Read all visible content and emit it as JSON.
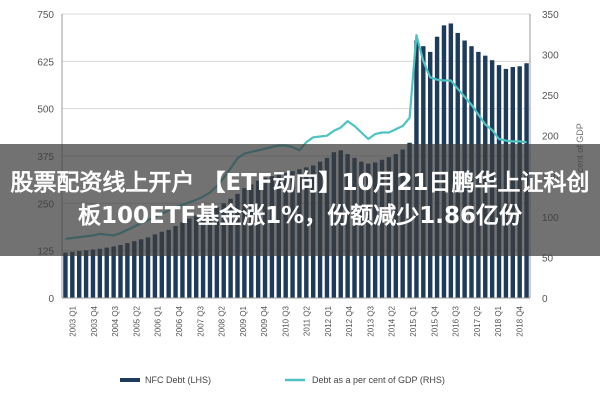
{
  "headline": "股票配资线上开户 【ETF动向】10月21日鹏华上证科创板100ETF基金涨1%，份额减少1.86亿份",
  "colors": {
    "bar": "#1f3b5c",
    "line": "#4ec3c2",
    "grid": "#d8d8d8",
    "axis": "#999999"
  },
  "chart_data": {
    "type": "bar",
    "title": "",
    "xlabel": "",
    "ylabel_left": "",
    "ylabel_right": "Per cent of GDP",
    "ylim_left": [
      0,
      750
    ],
    "ylim_right": [
      0,
      350
    ],
    "yticks_left": [
      "0",
      "125",
      "250",
      "375",
      "500",
      "625",
      "750"
    ],
    "yticks_right": [
      "0",
      "50",
      "100",
      "150",
      "200",
      "250",
      "300",
      "350"
    ],
    "x_tick_labels": [
      "2003 Q1",
      "2003 Q4",
      "2004 Q3",
      "2005 Q2",
      "2006 Q1",
      "2006 Q4",
      "2007 Q3",
      "2008 Q2",
      "2009 Q1",
      "2009 Q4",
      "2010 Q3",
      "2011 Q2",
      "2012 Q1",
      "2012 Q4",
      "2013 Q3",
      "2014 Q2",
      "2015 Q1",
      "2015 Q4",
      "2016 Q3",
      "2017 Q2",
      "2018 Q1",
      "2018 Q4"
    ],
    "legend": [
      {
        "key": "bar",
        "label": "NFC Debt (LHS)"
      },
      {
        "key": "line",
        "label": "Debt as a per cent of GDP (RHS)"
      }
    ],
    "series": [
      {
        "name": "NFC Debt (LHS)",
        "kind": "bar",
        "axis": "left",
        "values": [
          120,
          122,
          124,
          126,
          128,
          130,
          133,
          136,
          140,
          145,
          150,
          155,
          160,
          168,
          175,
          180,
          190,
          200,
          210,
          218,
          225,
          230,
          240,
          250,
          262,
          275,
          290,
          300,
          310,
          318,
          322,
          326,
          330,
          335,
          340,
          345,
          350,
          360,
          370,
          385,
          390,
          380,
          370,
          360,
          355,
          358,
          365,
          372,
          380,
          392,
          410,
          680,
          665,
          650,
          690,
          720,
          725,
          700,
          680,
          665,
          650,
          640,
          628,
          615,
          605,
          610,
          612,
          620
        ]
      },
      {
        "name": "Debt as a per cent of GDP (RHS)",
        "kind": "line",
        "axis": "right",
        "values": [
          73,
          74,
          75,
          76,
          77,
          79,
          78,
          77,
          80,
          84,
          88,
          92,
          96,
          100,
          104,
          108,
          112,
          115,
          118,
          121,
          125,
          130,
          138,
          148,
          160,
          172,
          178,
          180,
          182,
          184,
          186,
          188,
          188,
          186,
          182,
          192,
          198,
          199,
          200,
          206,
          210,
          218,
          212,
          204,
          196,
          202,
          204,
          204,
          208,
          212,
          222,
          324,
          292,
          272,
          269,
          268,
          268,
          258,
          248,
          238,
          226,
          214,
          207,
          196,
          194,
          193,
          193,
          192
        ]
      }
    ]
  }
}
